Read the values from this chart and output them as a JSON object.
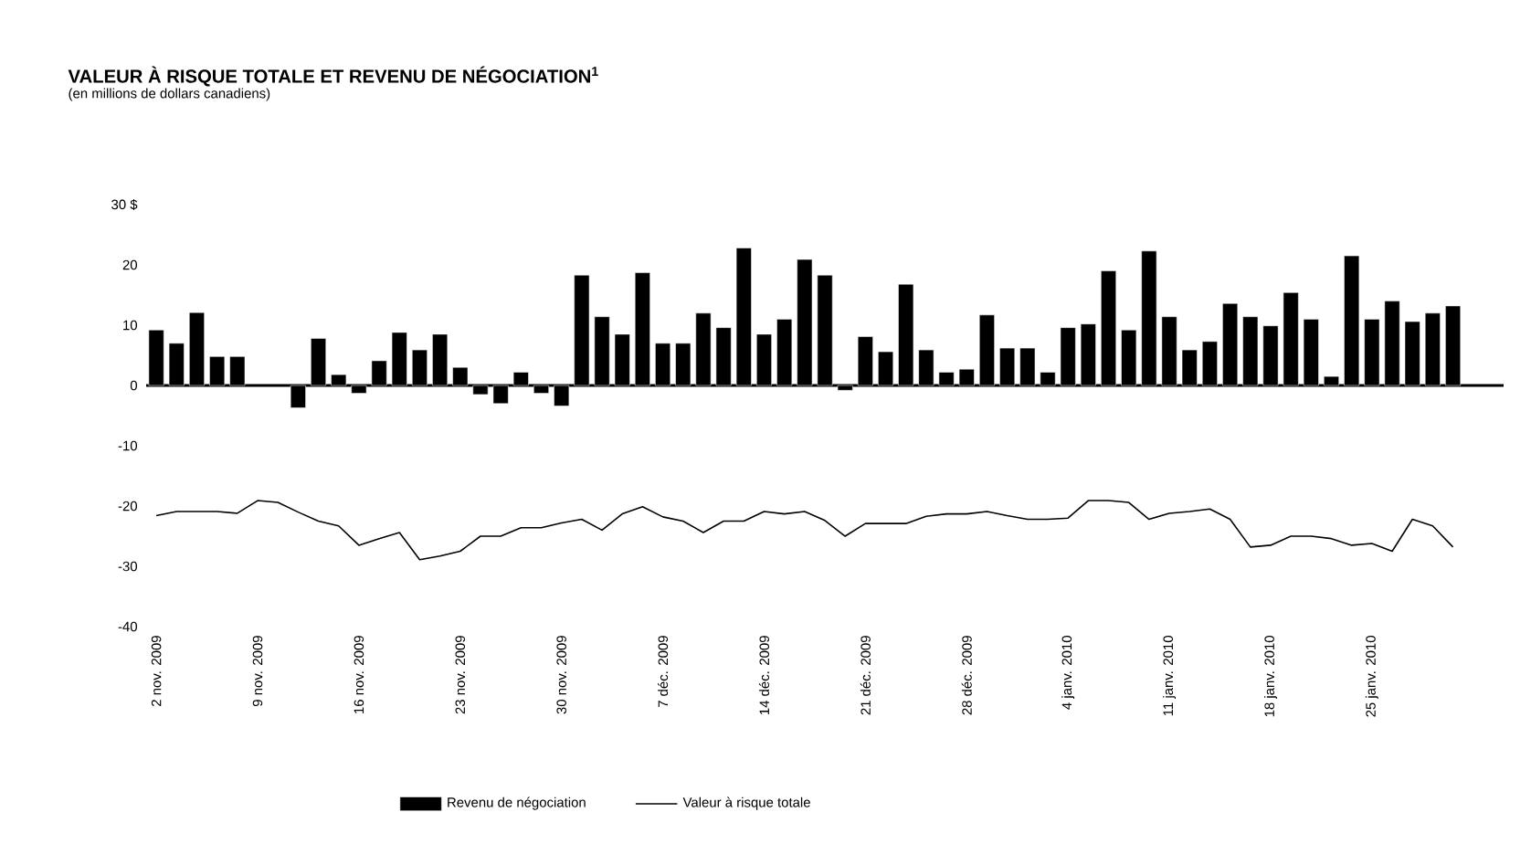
{
  "chart_data": {
    "type": "bar",
    "title": "VALEUR À RISQUE TOTALE ET REVENU DE NÉGOCIATION$^{1}$",
    "subtitle": "(en millions de dollars canadiens)",
    "categories": [
      "2 nov. 2009",
      null,
      null,
      null,
      null,
      "9 nov. 2009",
      null,
      null,
      null,
      null,
      "16 nov. 2009",
      null,
      null,
      null,
      null,
      "23 nov. 2009",
      null,
      null,
      null,
      null,
      "30 nov. 2009",
      null,
      null,
      null,
      null,
      "7 déc. 2009",
      null,
      null,
      null,
      null,
      "14 déc. 2009",
      null,
      null,
      null,
      null,
      "21 déc. 2009",
      null,
      null,
      null,
      null,
      "28 déc. 2009",
      null,
      null,
      null,
      null,
      "4 janv. 2010",
      null,
      null,
      null,
      null,
      "11 janv. 2010",
      null,
      null,
      null,
      null,
      "18 janv. 2010",
      null,
      null,
      null,
      null,
      "25 janv. 2010",
      null,
      null,
      null,
      null,
      null,
      null
    ],
    "series": [
      {
        "name": "Revenu de négociation",
        "color": "#000000",
        "values": [
          9.2,
          7.0,
          12.1,
          4.8,
          4.8,
          null,
          null,
          -3.7,
          7.8,
          1.8,
          -1.3,
          4.1,
          8.8,
          5.9,
          8.5,
          3.0,
          -1.5,
          -3.0,
          2.2,
          -1.3,
          -3.4,
          18.3,
          11.4,
          8.5,
          18.7,
          7.0,
          7.0,
          12.0,
          9.6,
          22.8,
          8.5,
          11.0,
          20.9,
          18.3,
          -0.8,
          8.1,
          5.6,
          16.8,
          5.9,
          2.2,
          2.7,
          11.7,
          6.2,
          6.2,
          2.2,
          9.6,
          10.2,
          19.0,
          9.2,
          22.3,
          11.4,
          5.9,
          7.3,
          13.6,
          11.4,
          9.9,
          15.4,
          11.0,
          1.5,
          21.5,
          11.0,
          14.0,
          10.6,
          12.0,
          13.2,
          null,
          null
        ]
      },
      {
        "name": "Valeur à risque totale",
        "type": "line",
        "color": "#000000",
        "values": [
          -21.6,
          -20.9,
          -20.9,
          -20.9,
          -21.2,
          -19.1,
          -19.4,
          -21.0,
          -22.5,
          -23.3,
          -26.5,
          -25.4,
          -24.4,
          -28.9,
          -28.3,
          -27.5,
          -25.0,
          -25.0,
          -23.6,
          -23.6,
          -22.8,
          -22.2,
          -24.0,
          -21.3,
          -20.1,
          -21.8,
          -22.5,
          -24.4,
          -22.5,
          -22.5,
          -20.9,
          -21.3,
          -20.9,
          -22.4,
          -25.0,
          -22.9,
          -22.9,
          -22.9,
          -21.7,
          -21.3,
          -21.3,
          -20.9,
          -21.6,
          -22.2,
          -22.2,
          -22.0,
          -19.1,
          -19.1,
          -19.4,
          -22.2,
          -21.2,
          -20.9,
          -20.5,
          -22.2,
          -26.8,
          -26.5,
          -25.0,
          -25.0,
          -25.4,
          -26.5,
          -26.2,
          -27.5,
          -22.2,
          -23.3,
          -26.8,
          null,
          null
        ]
      }
    ],
    "ylim": [
      -40,
      30
    ],
    "yticks": [
      -40,
      -30,
      -20,
      -10,
      0,
      10,
      20,
      {
        "value": 30,
        "label": "30 $"
      }
    ],
    "legend": "bottom"
  }
}
